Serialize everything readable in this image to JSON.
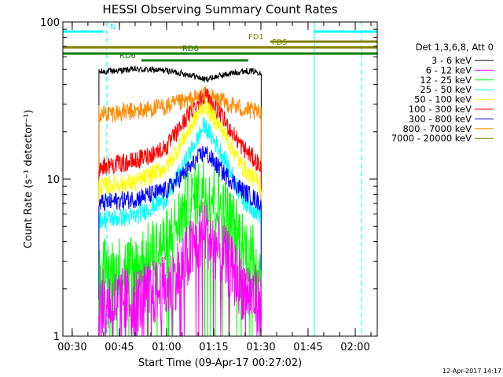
{
  "chart_data": {
    "type": "line",
    "title": "HESSI Observing Summary Count Rates",
    "xlabel": "Start Time (09-Apr-17 00:27:02)",
    "ylabel": "Count Rate (s⁻¹ detector⁻¹)",
    "x_range": [
      "00:27:02",
      "02:07:00"
    ],
    "y_range": [
      1,
      100
    ],
    "y_scale": "log",
    "x_ticks": [
      "00:30",
      "00:45",
      "01:00",
      "01:15",
      "01:30",
      "01:45",
      "02:00"
    ],
    "y_ticks": [
      "1",
      "10",
      "100"
    ],
    "legend_header": "Det 1,3,6,8, Att 0",
    "legend_position": "right",
    "data_window": [
      "00:38:30",
      "01:30:00"
    ],
    "series": [
      {
        "name": "3 - 6 keV",
        "color": "#000000",
        "x": [
          "00:38:30",
          "00:50:00",
          "01:00:00",
          "01:08:00",
          "01:12:00",
          "01:18:00",
          "01:25:00",
          "01:30:00"
        ],
        "values": [
          48,
          50,
          49,
          46,
          43,
          46,
          49,
          48
        ]
      },
      {
        "name": "6 - 12 keV",
        "color": "#ff00ff",
        "x": [
          "00:38:30",
          "00:50:00",
          "01:00:00",
          "01:06:00",
          "01:12:00",
          "01:18:00",
          "01:24:00",
          "01:30:00"
        ],
        "values": [
          1.6,
          1.7,
          2.0,
          3.0,
          4.7,
          3.2,
          2.1,
          1.6
        ]
      },
      {
        "name": "12 - 25 keV",
        "color": "#00ff00",
        "x": [
          "00:38:30",
          "00:50:00",
          "01:00:00",
          "01:06:00",
          "01:12:00",
          "01:18:00",
          "01:24:00",
          "01:30:00"
        ],
        "values": [
          2.5,
          2.8,
          4.0,
          6.5,
          9.0,
          6.5,
          4.0,
          2.6
        ]
      },
      {
        "name": "25 - 50 keV",
        "color": "#00ffff",
        "x": [
          "00:38:30",
          "00:50:00",
          "01:00:00",
          "01:06:00",
          "01:12:00",
          "01:18:00",
          "01:24:00",
          "01:30:00"
        ],
        "values": [
          5.5,
          5.8,
          7.5,
          13,
          22,
          14,
          7.5,
          5.8
        ]
      },
      {
        "name": "50 - 100 keV",
        "color": "#ffff00",
        "x": [
          "00:38:30",
          "00:50:00",
          "01:00:00",
          "01:06:00",
          "01:12:00",
          "01:18:00",
          "01:24:00",
          "01:30:00"
        ],
        "values": [
          9,
          9.5,
          12,
          19,
          30,
          20,
          12,
          9
        ]
      },
      {
        "name": "100 - 300 keV",
        "color": "#ff0000",
        "x": [
          "00:38:30",
          "00:50:00",
          "01:00:00",
          "01:06:00",
          "01:12:00",
          "01:18:00",
          "01:24:00",
          "01:30:00"
        ],
        "values": [
          12,
          13,
          16,
          24,
          35,
          24,
          16,
          12
        ]
      },
      {
        "name": "300 - 800 keV",
        "color": "#0000ff",
        "x": [
          "00:38:30",
          "00:50:00",
          "01:00:00",
          "01:06:00",
          "01:12:00",
          "01:18:00",
          "01:24:00",
          "01:30:00"
        ],
        "values": [
          7.0,
          7.5,
          8.5,
          11,
          15,
          11,
          8.5,
          7.0
        ]
      },
      {
        "name": "800 - 7000 keV",
        "color": "#ff8c00",
        "x": [
          "00:38:30",
          "00:50:00",
          "01:00:00",
          "01:06:00",
          "01:12:00",
          "01:18:00",
          "01:24:00",
          "01:30:00"
        ],
        "values": [
          26,
          27,
          29,
          31,
          34,
          31,
          28,
          26
        ]
      },
      {
        "name": "7000 - 20000 keV",
        "color": "#808000",
        "x": [],
        "values": []
      }
    ],
    "flags": [
      {
        "label": "N",
        "color": "#00ffff",
        "segments": [
          [
            "00:27:02",
            "00:40:00"
          ],
          [
            "01:47:00",
            "02:07:00"
          ]
        ],
        "level": 87
      },
      {
        "label": "FD1",
        "color": "#808000",
        "segments": [
          [
            "01:33:00",
            "02:07:00"
          ]
        ],
        "level": 75
      },
      {
        "label": "FD5",
        "color": "#808000",
        "segments": [
          [
            "00:27:02",
            "02:07:00"
          ]
        ],
        "level": 69
      },
      {
        "label": "RD0",
        "color": "#008000",
        "segments": [
          [
            "00:27:02",
            "02:07:00"
          ]
        ],
        "level": 63
      },
      {
        "label": "RD6",
        "color": "#008000",
        "segments": [
          [
            "00:52:00",
            "01:26:00"
          ]
        ],
        "level": 57
      }
    ],
    "vertical_lines": [
      {
        "time": "00:27:02",
        "color": "#00ffff",
        "dashed": false
      },
      {
        "time": "00:41:00",
        "color": "#00ffff",
        "dashed": true
      },
      {
        "time": "01:47:00",
        "color": "#00ffff",
        "dashed": false
      },
      {
        "time": "02:02:00",
        "color": "#00ffff",
        "dashed": true
      }
    ],
    "grid": false
  },
  "footer_timestamp": "12-Apr-2017 14:17"
}
